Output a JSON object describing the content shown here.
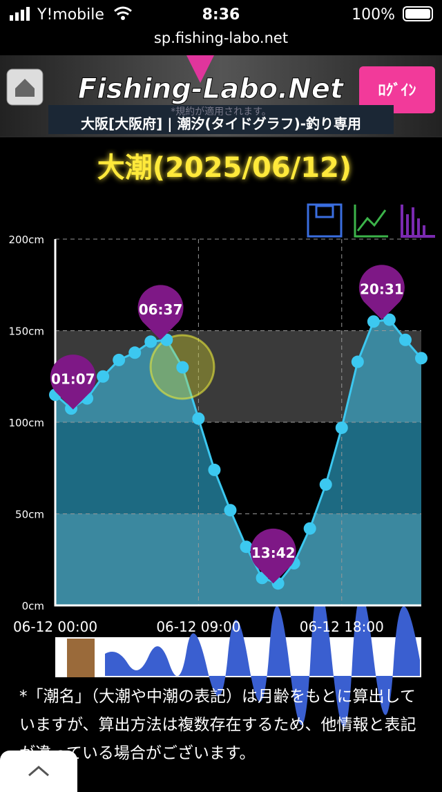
{
  "status_bar": {
    "carrier": "Y!mobile",
    "time": "8:36",
    "battery": "100%"
  },
  "url": "sp.fishing-labo.net",
  "header": {
    "logo": "Fishing-Labo.Net",
    "login": "ﾛｸﾞｲﾝ",
    "notice": "*規約が適用されます。",
    "location": "大阪[大阪府] | 潮汐(タイドグラフ)-釣り専用"
  },
  "title": "大潮(2025/06/12)",
  "chart_data": {
    "type": "line",
    "x": [
      0,
      1,
      2,
      3,
      4,
      5,
      6,
      7,
      8,
      9,
      10,
      11,
      12,
      13,
      14,
      15,
      16,
      17,
      18,
      19,
      20,
      21,
      22,
      23
    ],
    "values": [
      115,
      107.5,
      113,
      125,
      134,
      138,
      144,
      145,
      130,
      102,
      74,
      52,
      32,
      15,
      12,
      23,
      42,
      66,
      97,
      133,
      155,
      156,
      145,
      135
    ],
    "color": "#3cc8f0",
    "annotations": [
      {
        "label": "01:07",
        "x": 1.12,
        "y": 107
      },
      {
        "label": "06:37",
        "x": 6.62,
        "y": 145
      },
      {
        "label": "13:42",
        "x": 13.7,
        "y": 12
      },
      {
        "label": "20:31",
        "x": 20.52,
        "y": 156
      }
    ],
    "xlim": [
      0,
      23
    ],
    "ylim": [
      0,
      200
    ],
    "xticks": [
      {
        "value": 0,
        "label": "06-12 00:00"
      },
      {
        "value": 9,
        "label": "06-12 09:00"
      },
      {
        "value": 18,
        "label": "06-12 18:00"
      }
    ],
    "yticks": [
      {
        "value": 0,
        "label": "0cm"
      },
      {
        "value": 50,
        "label": "50cm"
      },
      {
        "value": 100,
        "label": "100cm"
      },
      {
        "value": 150,
        "label": "150cm"
      },
      {
        "value": 200,
        "label": "200cm"
      }
    ],
    "grid": true
  },
  "footnote": "*「潮名」（大潮や中潮の表記）は月齢をもとに算出していますが、算出方法は複数存在するため、他情報と表記が違っている場合がございます。"
}
